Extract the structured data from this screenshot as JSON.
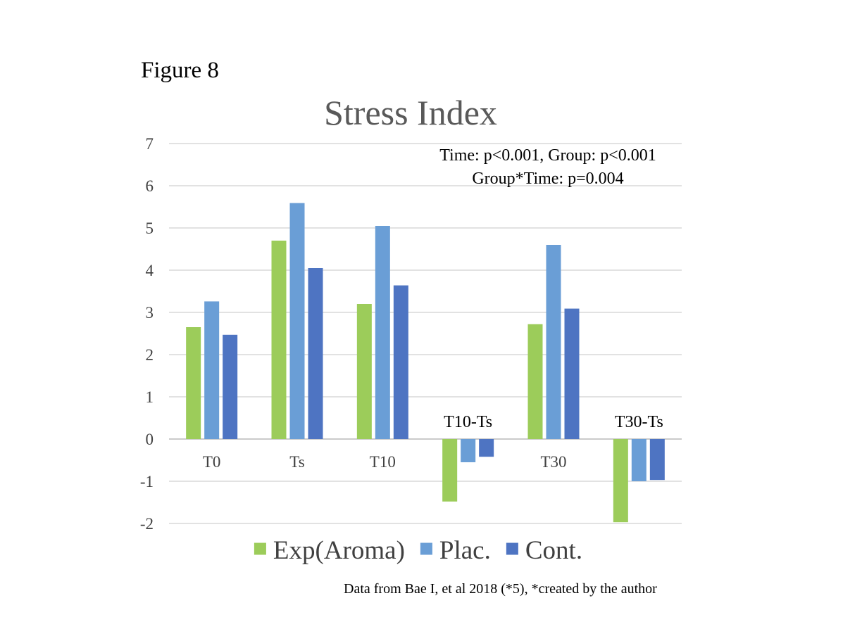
{
  "figure_label": "Figure 8",
  "source_note": "Data from Bae I, et al 2018  (*5), *created by the author",
  "chart_data": {
    "type": "bar",
    "title": "Stress Index",
    "xlabel": "",
    "ylabel": "",
    "ylim": [
      -2,
      7
    ],
    "yticks": [
      -2,
      -1,
      0,
      1,
      2,
      3,
      4,
      5,
      6,
      7
    ],
    "grid": true,
    "legend_position": "bottom",
    "categories": [
      "T0",
      "Ts",
      "T10",
      "T10-Ts",
      "T30",
      "T30-Ts"
    ],
    "category_label_placement": [
      "below-axis",
      "below-axis",
      "below-axis",
      "above-axis",
      "below-axis",
      "above-axis"
    ],
    "series": [
      {
        "name": "Exp(Aroma)",
        "color": "#9CCC5A",
        "values": [
          2.65,
          4.7,
          3.2,
          -1.48,
          2.72,
          -1.97
        ]
      },
      {
        "name": "Plac.",
        "color": "#6A9ED6",
        "values": [
          3.26,
          5.59,
          5.05,
          -0.55,
          4.6,
          -1.0
        ]
      },
      {
        "name": "Cont.",
        "color": "#4E74C2",
        "values": [
          2.47,
          4.05,
          3.64,
          -0.42,
          3.09,
          -0.97
        ]
      }
    ],
    "annotations": [
      "Time: p<0.001, Group: p<0.001",
      "Group*Time: p=0.004"
    ]
  }
}
